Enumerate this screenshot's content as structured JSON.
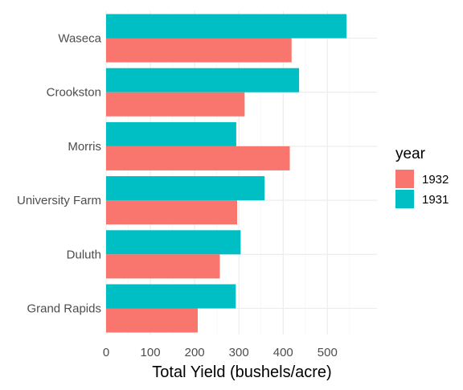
{
  "chart_data": {
    "type": "bar",
    "orientation": "horizontal",
    "layout": "grouped",
    "categories": [
      "Waseca",
      "Crookston",
      "Morris",
      "University Farm",
      "Duluth",
      "Grand Rapids"
    ],
    "series": [
      {
        "name": "1932",
        "color": "#F8766D",
        "values": [
          419,
          313,
          415,
          296,
          257,
          207
        ]
      },
      {
        "name": "1931",
        "color": "#00BFC4",
        "values": [
          543,
          436,
          294,
          358,
          304,
          293
        ]
      }
    ],
    "xlabel": "Total Yield (bushels/acre)",
    "ylabel": "",
    "xlim": [
      0,
      600
    ],
    "xticks": [
      0,
      100,
      200,
      300,
      400,
      500
    ],
    "legend": {
      "title": "year",
      "position": "right"
    },
    "grid": true
  }
}
